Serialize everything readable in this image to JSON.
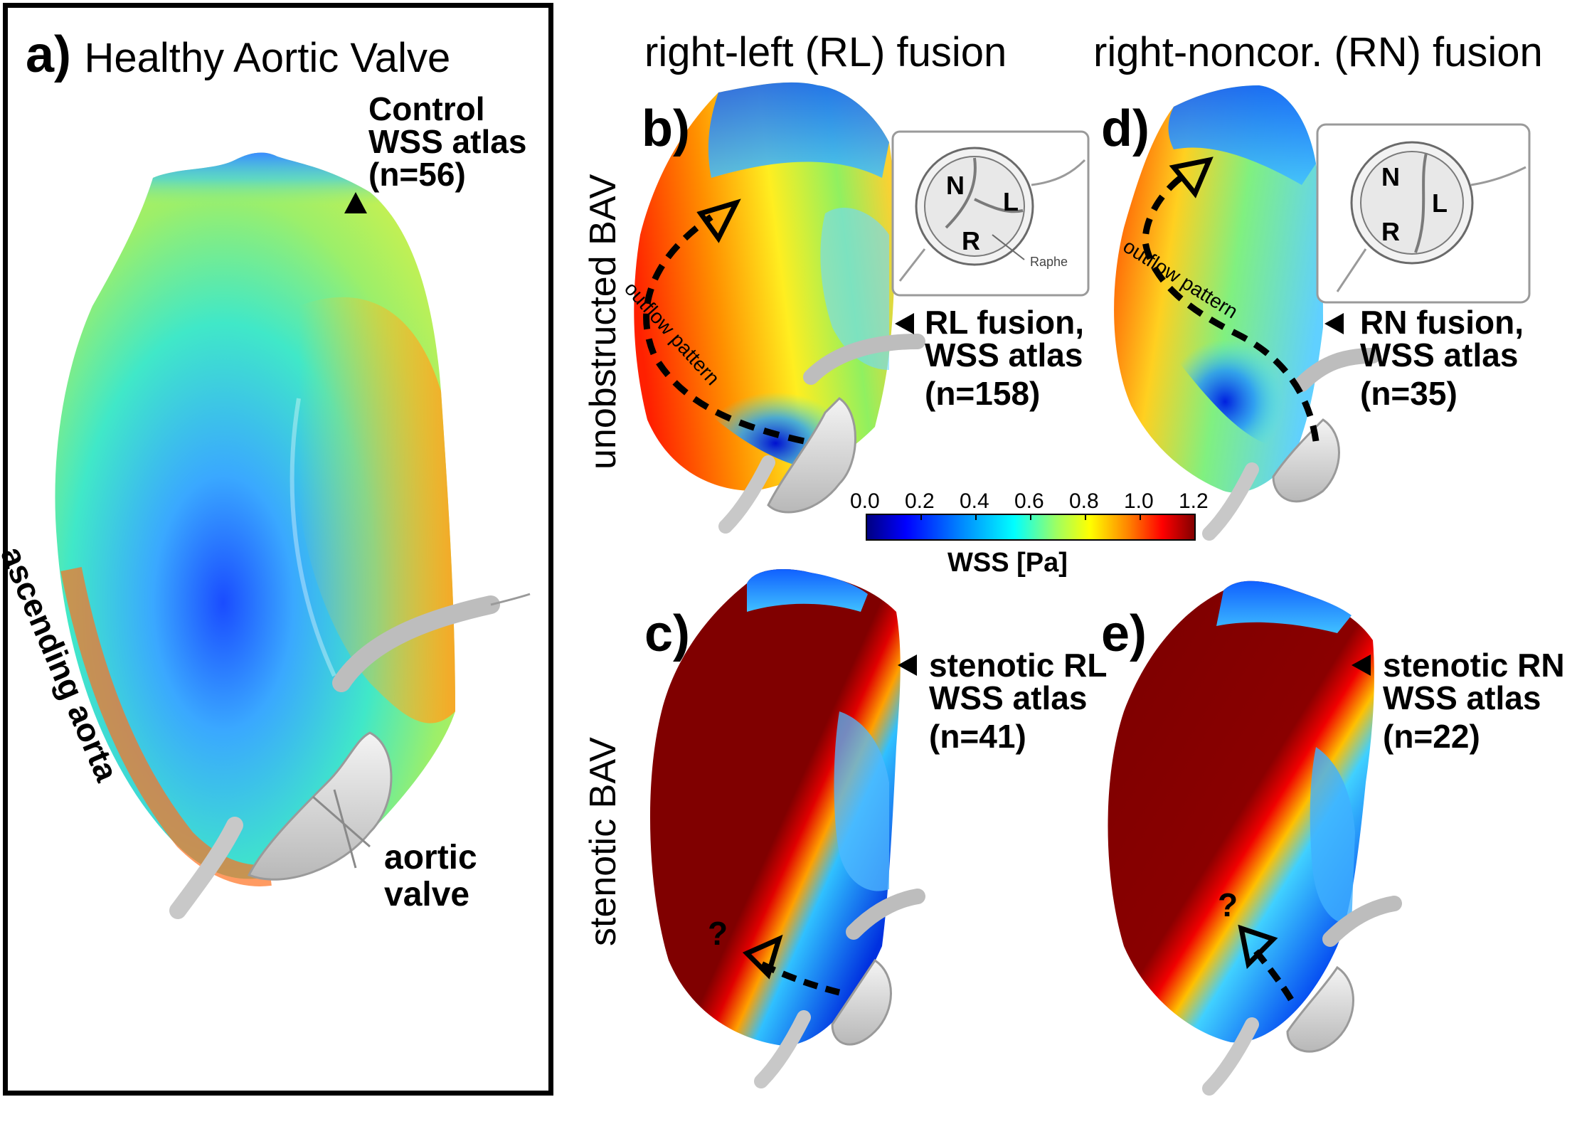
{
  "panel_a": {
    "letter": "a)",
    "title": "Healthy Aortic Valve",
    "atlas_line1": "Control",
    "atlas_line2": "WSS atlas",
    "atlas_line3": "(n=56)",
    "curve_label": "ascending aorta",
    "valve_line1": "aortic",
    "valve_line2": "valve"
  },
  "columns": {
    "rl_title": "right-left (RL) fusion",
    "rn_title": "right-noncor. (RN) fusion"
  },
  "rows": {
    "top": "unobstructed BAV",
    "bottom": "stenotic BAV"
  },
  "panel_b": {
    "letter": "b)",
    "atlas_line1": "RL fusion,",
    "atlas_line2": "WSS atlas",
    "atlas_line3": "(n=158)",
    "flow_label": "outflow pattern",
    "inset_N": "N",
    "inset_L": "L",
    "inset_R": "R",
    "inset_raphe": "Raphe"
  },
  "panel_d": {
    "letter": "d)",
    "atlas_line1": "RN fusion,",
    "atlas_line2": "WSS atlas",
    "atlas_line3": "(n=35)",
    "flow_label": "outflow pattern",
    "inset_N": "N",
    "inset_L": "L",
    "inset_R": "R"
  },
  "panel_c": {
    "letter": "c)",
    "atlas_line1": "stenotic RL",
    "atlas_line2": "WSS atlas",
    "atlas_line3": "(n=41)",
    "question": "?"
  },
  "panel_e": {
    "letter": "e)",
    "atlas_line1": "stenotic RN",
    "atlas_line2": "WSS atlas",
    "atlas_line3": "(n=22)",
    "question": "?"
  },
  "colorbar": {
    "label": "WSS [Pa]",
    "ticks": [
      "0.0",
      "0.2",
      "0.4",
      "0.6",
      "0.8",
      "1.0",
      "1.2"
    ],
    "min": 0.0,
    "max": 1.2,
    "colors": [
      "#00007f",
      "#0000ff",
      "#0080ff",
      "#00ffff",
      "#80ff80",
      "#ffff00",
      "#ff8000",
      "#ff0000",
      "#800000"
    ]
  }
}
